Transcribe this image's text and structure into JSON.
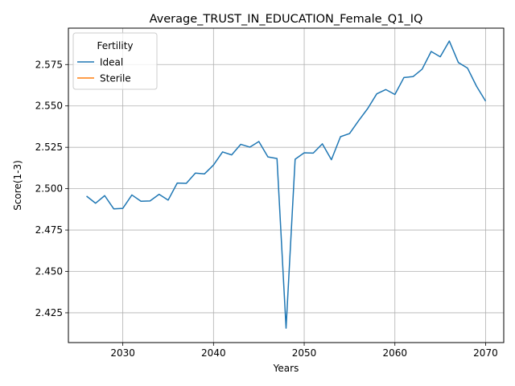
{
  "chart_data": {
    "type": "line",
    "title": "Average_TRUST_IN_EDUCATION_Female_Q1_IQ",
    "xlabel": "Years",
    "ylabel": "Score(1-3)",
    "xlim": [
      2024,
      2072
    ],
    "ylim": [
      2.407,
      2.597
    ],
    "xticks": [
      2030,
      2040,
      2050,
      2060,
      2070
    ],
    "yticks": [
      2.425,
      2.45,
      2.475,
      2.5,
      2.525,
      2.55,
      2.575
    ],
    "xtick_labels": [
      "2030",
      "2040",
      "2050",
      "2060",
      "2070"
    ],
    "ytick_labels": [
      "2.425",
      "2.450",
      "2.475",
      "2.500",
      "2.525",
      "2.550",
      "2.575"
    ],
    "grid": true,
    "legend": {
      "title": "Fertility",
      "placement": "upper-left"
    },
    "series": [
      {
        "name": "Ideal",
        "color": "#1f77b4",
        "x": [
          2026,
          2027,
          2028,
          2029,
          2030,
          2031,
          2032,
          2033,
          2034,
          2035,
          2036,
          2037,
          2038,
          2039,
          2040,
          2041,
          2042,
          2043,
          2044,
          2045,
          2046,
          2047,
          2048,
          2049,
          2050,
          2051,
          2052,
          2053,
          2054,
          2055,
          2056,
          2057,
          2058,
          2059,
          2060,
          2061,
          2062,
          2063,
          2064,
          2065,
          2066,
          2067,
          2068,
          2069,
          2070
        ],
        "y": [
          2.4955,
          2.4912,
          2.4958,
          2.4878,
          2.4881,
          2.4962,
          2.4924,
          2.4926,
          2.4966,
          2.4931,
          2.5034,
          2.5032,
          2.5094,
          2.5089,
          2.5143,
          2.5222,
          2.5204,
          2.5268,
          2.5251,
          2.5285,
          2.5192,
          2.5182,
          2.4157,
          2.5178,
          2.5217,
          2.5215,
          2.5271,
          2.5175,
          2.5314,
          2.5333,
          2.5411,
          2.5484,
          2.5573,
          2.5599,
          2.5569,
          2.5672,
          2.5677,
          2.5722,
          2.5829,
          2.5797,
          2.5892,
          2.5762,
          2.5729,
          2.5619,
          2.5529
        ]
      },
      {
        "name": "Sterile",
        "color": "#ff7f0e",
        "x": [],
        "y": []
      }
    ]
  }
}
